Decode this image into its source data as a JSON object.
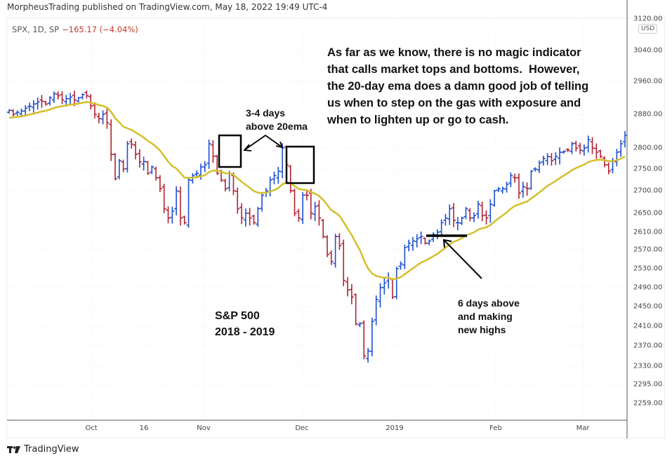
{
  "header": {
    "published": "MorpheusTrading published on TradingView.com, May 18, 2022 19:49 UTC-4"
  },
  "legend": {
    "symbol": "SPX, 1D, SP",
    "change": "−165.17 (−4.04%)"
  },
  "currency": "USD",
  "footer": {
    "brand": "TradingView",
    "logo_icon": "tradingview-logo-icon"
  },
  "colors": {
    "up": "#1f4fd1",
    "down": "#b22234",
    "ema": "#d4bf2a"
  },
  "chart_data": {
    "type": "ohlc-bar",
    "title": "SPX, 1D",
    "yaxis_scale": "log",
    "y_ticks": [
      "3120.00",
      "3040.00",
      "2960.00",
      "2880.00",
      "2800.00",
      "2750.00",
      "2700.00",
      "2650.00",
      "2610.00",
      "2570.00",
      "2530.00",
      "2490.00",
      "2450.00",
      "2410.00",
      "2370.00",
      "2330.00",
      "2295.00",
      "2259.00"
    ],
    "x_ticks": [
      "Oct",
      "16",
      "Nov",
      "Dec",
      "2019",
      "Feb",
      "Mar"
    ],
    "series_close": [
      2890,
      2880,
      2885,
      2888,
      2895,
      2900,
      2905,
      2910,
      2912,
      2905,
      2920,
      2930,
      2925,
      2915,
      2918,
      2922,
      2915,
      2920,
      2928,
      2925,
      2900,
      2880,
      2870,
      2880,
      2860,
      2785,
      2728,
      2770,
      2750,
      2810,
      2809,
      2785,
      2767,
      2768,
      2740,
      2755,
      2730,
      2705,
      2660,
      2640,
      2655,
      2700,
      2640,
      2630,
      2725,
      2735,
      2740,
      2755,
      2760,
      2810,
      2780,
      2740,
      2725,
      2705,
      2740,
      2700,
      2660,
      2640,
      2650,
      2640,
      2630,
      2660,
      2690,
      2700,
      2725,
      2735,
      2745,
      2800,
      2760,
      2700,
      2650,
      2640,
      2690,
      2690,
      2650,
      2665,
      2640,
      2600,
      2560,
      2545,
      2600,
      2580,
      2505,
      2485,
      2470,
      2415,
      2415,
      2350,
      2360,
      2420,
      2465,
      2490,
      2500,
      2510,
      2470,
      2530,
      2540,
      2575,
      2585,
      2590,
      2595,
      2600,
      2585,
      2590,
      2605,
      2610,
      2630,
      2640,
      2660,
      2635,
      2630,
      2640,
      2660,
      2640,
      2645,
      2670,
      2645,
      2640,
      2670,
      2700,
      2705,
      2705,
      2715,
      2735,
      2730,
      2695,
      2710,
      2705,
      2745,
      2750,
      2765,
      2775,
      2780,
      2770,
      2780,
      2790,
      2792,
      2795,
      2810,
      2800,
      2795,
      2800,
      2820,
      2800,
      2790,
      2780,
      2760,
      2745,
      2770,
      2790,
      2810,
      2830
    ],
    "ema_period": 20,
    "annotations": [
      "As far as we know, there is no magic indicator\nthat calls market tops and bottoms.  However,\nthe 20-day ema does a damn good job of telling\nus when to step on the gas with exposure and\nwhen to lighten up or go to cash.",
      "3-4 days\nabove 20ema",
      "S&P 500\n2018 - 2019",
      "6 days above\nand making\nnew highs"
    ]
  }
}
